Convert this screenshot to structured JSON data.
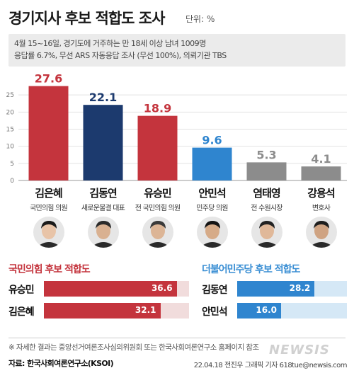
{
  "title": "경기지사 후보 적합도 조사",
  "unit": "단위: %",
  "info": {
    "line1": "4월 15~16일, 경기도에 거주하는 만 18세 이상 남녀 1009명",
    "line2": "응답률 6.7%, 무선 ARS 자동응답 조사 (무선 100%), 의뢰기관 TBS"
  },
  "candidates": [
    {
      "name": "김은혜",
      "role": "국민의힘 의원"
    },
    {
      "name": "김동연",
      "role": "새로운물결 대표"
    },
    {
      "name": "유승민",
      "role": "전 국민의힘 의원"
    },
    {
      "name": "안민석",
      "role": "민주당 의원"
    },
    {
      "name": "염태영",
      "role": "전 수원시장"
    },
    {
      "name": "강용석",
      "role": "변호사"
    }
  ],
  "colors": {
    "red": "#c4343d",
    "navy": "#1c3a6e",
    "blue": "#2f85cf",
    "gray": "#8c8c8c"
  },
  "chart_data": [
    {
      "type": "bar",
      "categories": [
        "김은혜",
        "김동연",
        "유승민",
        "안민석",
        "염태영",
        "강용석"
      ],
      "values": [
        27.6,
        22.1,
        18.9,
        9.6,
        5.3,
        4.1
      ],
      "value_labels": [
        "27.6",
        "22.1",
        "18.9",
        "9.6",
        "5.3",
        "4.1"
      ],
      "bar_colors": [
        "#c4343d",
        "#1c3a6e",
        "#c4343d",
        "#2f85cf",
        "#8c8c8c",
        "#8c8c8c"
      ],
      "ylim": [
        0,
        30
      ],
      "yticks": [
        "0",
        "5",
        "10",
        "15",
        "20",
        "25"
      ],
      "grid": true
    },
    {
      "type": "bar",
      "orientation": "horizontal",
      "title": "국민의힘 후보 적합도",
      "categories": [
        "유승민",
        "김은혜"
      ],
      "values": [
        36.6,
        32.1
      ],
      "value_labels": [
        "36.6",
        "32.1"
      ],
      "color": "#c4343d"
    },
    {
      "type": "bar",
      "orientation": "horizontal",
      "title": "더불어민주당 후보 적합도",
      "categories": [
        "김동연",
        "안민석"
      ],
      "values": [
        28.2,
        16.0
      ],
      "value_labels": [
        "28.2",
        "16.0"
      ],
      "color": "#2f85cf"
    }
  ],
  "footer": {
    "note": "※ 자세한 결과는 중앙선거여론조사심의위원회 또는 한국사회여론연구소 홈페이지 참조",
    "source": "자료: 한국사회여론연구소(KSOI)",
    "credit": "22.04.18 전진우 그래픽 기자 618tue@newsis.com",
    "watermark": "NEWSIS"
  }
}
